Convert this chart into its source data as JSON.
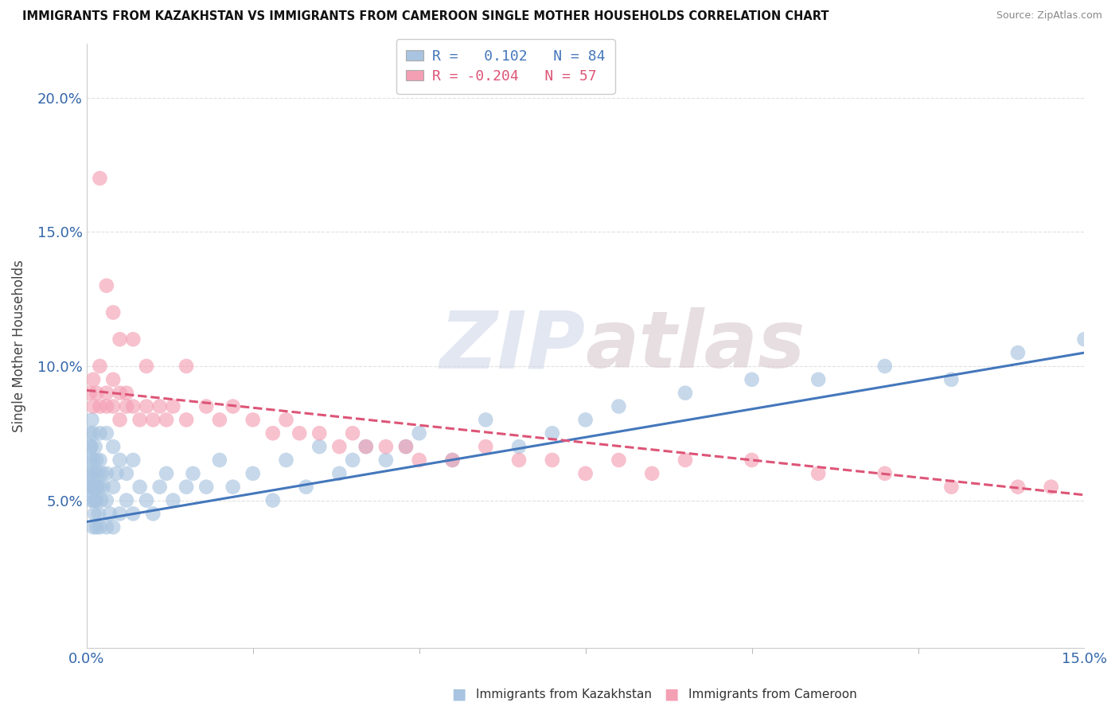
{
  "title": "IMMIGRANTS FROM KAZAKHSTAN VS IMMIGRANTS FROM CAMEROON SINGLE MOTHER HOUSEHOLDS CORRELATION CHART",
  "source": "Source: ZipAtlas.com",
  "ylabel": "Single Mother Households",
  "yticks": [
    "5.0%",
    "10.0%",
    "15.0%",
    "20.0%"
  ],
  "ytick_vals": [
    0.05,
    0.1,
    0.15,
    0.2
  ],
  "xlim": [
    0.0,
    0.15
  ],
  "ylim": [
    -0.005,
    0.22
  ],
  "color_kazakhstan": "#a8c4e0",
  "color_cameroon": "#f4a0b4",
  "line_color_kazakhstan": "#4477bb",
  "line_color_cameroon": "#dd5577",
  "background_color": "#ffffff",
  "grid_color": "#e0e0e0",
  "kaz_line_style": "solid",
  "cam_line_style": "dashed",
  "kaz_line_start_y": 0.042,
  "kaz_line_end_y": 0.105,
  "cam_line_start_y": 0.091,
  "cam_line_end_y": 0.052,
  "kazakhstan_x": [
    0.0003,
    0.0004,
    0.0005,
    0.0005,
    0.0006,
    0.0006,
    0.0007,
    0.0007,
    0.0008,
    0.0008,
    0.0009,
    0.001,
    0.001,
    0.001,
    0.001,
    0.001,
    0.0012,
    0.0012,
    0.0013,
    0.0013,
    0.0014,
    0.0015,
    0.0015,
    0.0015,
    0.0016,
    0.0017,
    0.0018,
    0.002,
    0.002,
    0.002,
    0.002,
    0.0022,
    0.0023,
    0.0025,
    0.003,
    0.003,
    0.003,
    0.003,
    0.0035,
    0.004,
    0.004,
    0.004,
    0.0045,
    0.005,
    0.005,
    0.006,
    0.006,
    0.007,
    0.007,
    0.008,
    0.009,
    0.01,
    0.011,
    0.012,
    0.013,
    0.015,
    0.016,
    0.018,
    0.02,
    0.022,
    0.025,
    0.028,
    0.03,
    0.033,
    0.035,
    0.038,
    0.04,
    0.042,
    0.045,
    0.048,
    0.05,
    0.055,
    0.06,
    0.065,
    0.07,
    0.075,
    0.08,
    0.09,
    0.1,
    0.11,
    0.12,
    0.13,
    0.14,
    0.15
  ],
  "kazakhstan_y": [
    0.06,
    0.055,
    0.065,
    0.075,
    0.05,
    0.07,
    0.055,
    0.07,
    0.06,
    0.08,
    0.055,
    0.04,
    0.05,
    0.055,
    0.065,
    0.075,
    0.045,
    0.06,
    0.05,
    0.07,
    0.055,
    0.04,
    0.05,
    0.065,
    0.055,
    0.06,
    0.045,
    0.04,
    0.055,
    0.065,
    0.075,
    0.05,
    0.06,
    0.055,
    0.04,
    0.05,
    0.06,
    0.075,
    0.045,
    0.04,
    0.055,
    0.07,
    0.06,
    0.045,
    0.065,
    0.05,
    0.06,
    0.045,
    0.065,
    0.055,
    0.05,
    0.045,
    0.055,
    0.06,
    0.05,
    0.055,
    0.06,
    0.055,
    0.065,
    0.055,
    0.06,
    0.05,
    0.065,
    0.055,
    0.07,
    0.06,
    0.065,
    0.07,
    0.065,
    0.07,
    0.075,
    0.065,
    0.08,
    0.07,
    0.075,
    0.08,
    0.085,
    0.09,
    0.095,
    0.095,
    0.1,
    0.095,
    0.105,
    0.11
  ],
  "cameroon_x": [
    0.0005,
    0.001,
    0.001,
    0.0015,
    0.002,
    0.002,
    0.003,
    0.003,
    0.004,
    0.004,
    0.005,
    0.005,
    0.006,
    0.006,
    0.007,
    0.008,
    0.009,
    0.01,
    0.011,
    0.012,
    0.013,
    0.015,
    0.018,
    0.02,
    0.022,
    0.025,
    0.028,
    0.03,
    0.032,
    0.035,
    0.038,
    0.04,
    0.042,
    0.045,
    0.048,
    0.05,
    0.055,
    0.06,
    0.065,
    0.07,
    0.075,
    0.08,
    0.085,
    0.09,
    0.1,
    0.11,
    0.12,
    0.13,
    0.14,
    0.145,
    0.002,
    0.003,
    0.004,
    0.005,
    0.007,
    0.009,
    0.015
  ],
  "cameroon_y": [
    0.09,
    0.085,
    0.095,
    0.09,
    0.085,
    0.1,
    0.085,
    0.09,
    0.085,
    0.095,
    0.08,
    0.09,
    0.085,
    0.09,
    0.085,
    0.08,
    0.085,
    0.08,
    0.085,
    0.08,
    0.085,
    0.08,
    0.085,
    0.08,
    0.085,
    0.08,
    0.075,
    0.08,
    0.075,
    0.075,
    0.07,
    0.075,
    0.07,
    0.07,
    0.07,
    0.065,
    0.065,
    0.07,
    0.065,
    0.065,
    0.06,
    0.065,
    0.06,
    0.065,
    0.065,
    0.06,
    0.06,
    0.055,
    0.055,
    0.055,
    0.17,
    0.13,
    0.12,
    0.11,
    0.11,
    0.1,
    0.1
  ]
}
